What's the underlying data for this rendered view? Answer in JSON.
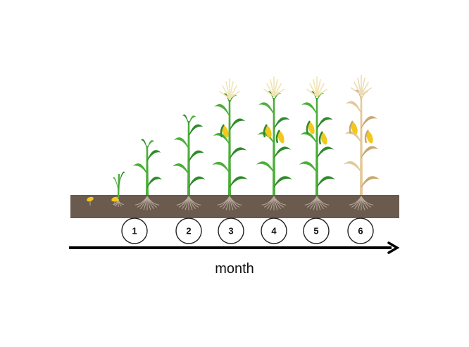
{
  "stages": [
    "1",
    "2",
    "3",
    "4",
    "5",
    "6"
  ],
  "axis_label": "month",
  "colors": {
    "soil": "#6b5a4e",
    "leaf": "#4caf3a",
    "leaf_dark": "#2f8a2a",
    "leaf_dry": "#e3c998",
    "leaf_dry_dark": "#c9a86e",
    "tassel": "#f1e4b0",
    "cob": "#f2c81c",
    "silk": "#8a5a2a",
    "root": "#b7aa9c",
    "seed": "#f2c81c"
  },
  "icons": [
    "seed-icon",
    "sprout-icon",
    "corn-plant-icon",
    "arrow-icon"
  ]
}
